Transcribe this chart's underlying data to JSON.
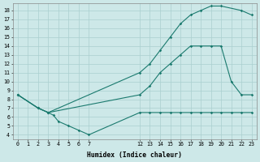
{
  "xlabel": "Humidex (Indice chaleur)",
  "background_color": "#cde8e8",
  "grid_color": "#aacfcf",
  "line_color": "#1a7a6e",
  "xlim": [
    -0.5,
    23.5
  ],
  "ylim": [
    3.5,
    18.8
  ],
  "xticks": [
    0,
    1,
    2,
    3,
    4,
    5,
    6,
    7,
    12,
    13,
    14,
    15,
    16,
    17,
    18,
    19,
    20,
    21,
    22,
    23
  ],
  "yticks": [
    4,
    5,
    6,
    7,
    8,
    9,
    10,
    11,
    12,
    13,
    14,
    15,
    16,
    17,
    18
  ],
  "line1_x": [
    0,
    2,
    3,
    12,
    13,
    14,
    15,
    16,
    17,
    18,
    19,
    20,
    22,
    23
  ],
  "line1_y": [
    8.5,
    7.0,
    6.5,
    11.0,
    12.0,
    13.5,
    15.0,
    16.5,
    17.5,
    18.0,
    18.5,
    18.5,
    18.0,
    17.5
  ],
  "line2_x": [
    0,
    2,
    3,
    12,
    13,
    14,
    15,
    16,
    17,
    18,
    19,
    20,
    21,
    22,
    23
  ],
  "line2_y": [
    8.5,
    7.0,
    6.5,
    8.5,
    9.5,
    11.0,
    12.0,
    13.0,
    14.0,
    14.0,
    14.0,
    14.0,
    10.0,
    8.5,
    8.5
  ],
  "line3_x": [
    0,
    2,
    3,
    3.5,
    4,
    5,
    6,
    7,
    12,
    13,
    14,
    15,
    16,
    17,
    18,
    19,
    20,
    21,
    22,
    23
  ],
  "line3_y": [
    8.5,
    7.0,
    6.5,
    6.2,
    5.5,
    5.0,
    4.5,
    4.0,
    6.5,
    6.5,
    6.5,
    6.5,
    6.5,
    6.5,
    6.5,
    6.5,
    6.5,
    6.5,
    6.5,
    6.5
  ]
}
